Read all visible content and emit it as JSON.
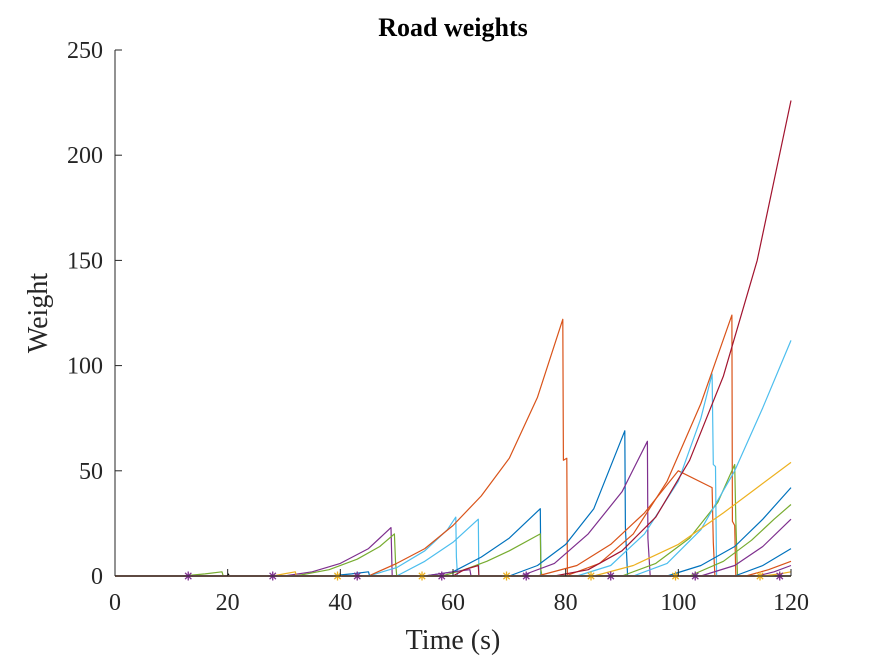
{
  "chart_data": {
    "type": "line",
    "title": "Road weights",
    "xlabel": "Time (s)",
    "ylabel": "Weight",
    "xlim": [
      0,
      120
    ],
    "ylim": [
      0,
      250
    ],
    "x_ticks": [
      0,
      20,
      40,
      60,
      80,
      100,
      120
    ],
    "y_ticks": [
      0,
      50,
      100,
      150,
      200,
      250
    ],
    "grid": false,
    "legend": "none",
    "series": [
      {
        "color": "#77ac30",
        "points": [
          [
            0,
            0
          ],
          [
            12,
            0
          ],
          [
            16,
            1
          ],
          [
            19,
            2
          ],
          [
            19.2,
            0
          ],
          [
            120,
            0
          ]
        ]
      },
      {
        "color": "#000000",
        "points": [
          [
            0,
            0
          ],
          [
            20,
            0
          ],
          [
            20.1,
            1
          ],
          [
            20.3,
            0
          ],
          [
            120,
            0
          ]
        ]
      },
      {
        "color": "#7e2f8e",
        "points": [
          [
            0,
            0
          ],
          [
            30,
            0
          ],
          [
            35,
            2
          ],
          [
            40,
            6
          ],
          [
            45,
            13
          ],
          [
            49,
            23
          ],
          [
            49.2,
            0
          ],
          [
            120,
            0
          ]
        ]
      },
      {
        "color": "#77ac30",
        "points": [
          [
            0,
            0
          ],
          [
            32,
            0
          ],
          [
            38,
            3
          ],
          [
            43,
            8
          ],
          [
            47,
            14
          ],
          [
            49.6,
            20
          ],
          [
            49.8,
            7
          ],
          [
            50,
            0
          ],
          [
            120,
            0
          ]
        ]
      },
      {
        "color": "#edb120",
        "points": [
          [
            0,
            0
          ],
          [
            28,
            0
          ],
          [
            30,
            1
          ],
          [
            32,
            2
          ],
          [
            32.2,
            0
          ],
          [
            120,
            0
          ]
        ]
      },
      {
        "color": "#0072bd",
        "points": [
          [
            0,
            0
          ],
          [
            38,
            0
          ],
          [
            42,
            1
          ],
          [
            45,
            2
          ],
          [
            45.2,
            0
          ],
          [
            120,
            0
          ]
        ]
      },
      {
        "color": "#4dbeee",
        "points": [
          [
            0,
            0
          ],
          [
            45,
            0
          ],
          [
            50,
            4
          ],
          [
            55,
            12
          ],
          [
            59,
            22
          ],
          [
            60.5,
            28
          ],
          [
            60.6,
            9
          ],
          [
            60.8,
            0
          ],
          [
            120,
            0
          ]
        ]
      },
      {
        "color": "#4dbeee",
        "points": [
          [
            0,
            0
          ],
          [
            50,
            0
          ],
          [
            55,
            7
          ],
          [
            60,
            16
          ],
          [
            64.5,
            27
          ],
          [
            64.6,
            0
          ],
          [
            120,
            0
          ]
        ]
      },
      {
        "color": "#d95319",
        "points": [
          [
            0,
            0
          ],
          [
            45,
            0
          ],
          [
            50,
            6
          ],
          [
            55,
            13
          ],
          [
            60,
            24
          ],
          [
            65,
            38
          ],
          [
            70,
            56
          ],
          [
            75,
            85
          ],
          [
            79.5,
            122
          ],
          [
            79.6,
            55
          ],
          [
            80.2,
            56
          ],
          [
            80.3,
            0
          ],
          [
            120,
            0
          ]
        ]
      },
      {
        "color": "#0072bd",
        "points": [
          [
            0,
            0
          ],
          [
            55,
            0
          ],
          [
            60,
            2
          ],
          [
            65,
            9
          ],
          [
            70,
            18
          ],
          [
            75.5,
            32
          ],
          [
            75.6,
            0
          ],
          [
            120,
            0
          ]
        ]
      },
      {
        "color": "#77ac30",
        "points": [
          [
            0,
            0
          ],
          [
            58,
            0
          ],
          [
            62,
            3
          ],
          [
            66,
            7
          ],
          [
            70,
            12
          ],
          [
            75.5,
            20
          ],
          [
            75.6,
            3
          ],
          [
            75.8,
            0
          ],
          [
            120,
            0
          ]
        ]
      },
      {
        "color": "#7e2f8e",
        "points": [
          [
            0,
            0
          ],
          [
            55,
            0
          ],
          [
            60,
            2
          ],
          [
            63,
            3
          ],
          [
            63.2,
            0
          ],
          [
            120,
            0
          ]
        ]
      },
      {
        "color": "#a2142f",
        "points": [
          [
            0,
            0
          ],
          [
            60,
            0
          ],
          [
            62,
            3
          ],
          [
            64.5,
            5
          ],
          [
            64.6,
            0
          ],
          [
            120,
            0
          ]
        ]
      },
      {
        "color": "#0072bd",
        "points": [
          [
            0,
            0
          ],
          [
            70,
            0
          ],
          [
            75,
            5
          ],
          [
            80,
            15
          ],
          [
            85,
            32
          ],
          [
            90.5,
            69
          ],
          [
            90.6,
            23
          ],
          [
            91,
            0
          ],
          [
            120,
            0
          ]
        ]
      },
      {
        "color": "#7e2f8e",
        "points": [
          [
            0,
            0
          ],
          [
            72,
            0
          ],
          [
            78,
            6
          ],
          [
            84,
            20
          ],
          [
            90,
            40
          ],
          [
            94.5,
            64
          ],
          [
            94.6,
            18
          ],
          [
            95,
            0
          ],
          [
            120,
            0
          ]
        ]
      },
      {
        "color": "#d95319",
        "points": [
          [
            0,
            0
          ],
          [
            75,
            0
          ],
          [
            82,
            5
          ],
          [
            88,
            15
          ],
          [
            94,
            30
          ],
          [
            100,
            50
          ],
          [
            106,
            42
          ],
          [
            106.2,
            16
          ],
          [
            106.5,
            0
          ],
          [
            120,
            0
          ]
        ]
      },
      {
        "color": "#4dbeee",
        "points": [
          [
            0,
            0
          ],
          [
            82,
            0
          ],
          [
            88,
            5
          ],
          [
            94,
            20
          ],
          [
            100,
            45
          ],
          [
            104,
            75
          ],
          [
            106,
            96
          ],
          [
            106.2,
            53
          ],
          [
            106.6,
            52
          ],
          [
            106.8,
            0
          ],
          [
            120,
            0
          ]
        ]
      },
      {
        "color": "#d95319",
        "points": [
          [
            0,
            0
          ],
          [
            80,
            0
          ],
          [
            86,
            6
          ],
          [
            92,
            20
          ],
          [
            98,
            45
          ],
          [
            104,
            82
          ],
          [
            109.5,
            124
          ],
          [
            109.6,
            26
          ],
          [
            110,
            24
          ],
          [
            110.2,
            0
          ],
          [
            120,
            0
          ]
        ]
      },
      {
        "color": "#77ac30",
        "points": [
          [
            0,
            0
          ],
          [
            90,
            0
          ],
          [
            96,
            6
          ],
          [
            102,
            18
          ],
          [
            107,
            35
          ],
          [
            110,
            53
          ],
          [
            110.2,
            27
          ],
          [
            110.5,
            0
          ],
          [
            120,
            0
          ]
        ]
      },
      {
        "color": "#a2142f",
        "points": [
          [
            0,
            0
          ],
          [
            78,
            0
          ],
          [
            84,
            3
          ],
          [
            90,
            12
          ],
          [
            96,
            28
          ],
          [
            102,
            55
          ],
          [
            108,
            95
          ],
          [
            114,
            150
          ],
          [
            120,
            226
          ]
        ]
      },
      {
        "color": "#4dbeee",
        "points": [
          [
            0,
            0
          ],
          [
            92,
            0
          ],
          [
            98,
            6
          ],
          [
            104,
            22
          ],
          [
            110,
            50
          ],
          [
            115,
            80
          ],
          [
            120,
            112
          ]
        ]
      },
      {
        "color": "#edb120",
        "points": [
          [
            0,
            0
          ],
          [
            85,
            0
          ],
          [
            92,
            5
          ],
          [
            100,
            15
          ],
          [
            108,
            30
          ],
          [
            114,
            42
          ],
          [
            120,
            54
          ]
        ]
      },
      {
        "color": "#0072bd",
        "points": [
          [
            0,
            0
          ],
          [
            98,
            0
          ],
          [
            104,
            5
          ],
          [
            110,
            14
          ],
          [
            115,
            27
          ],
          [
            120,
            42
          ]
        ]
      },
      {
        "color": "#77ac30",
        "points": [
          [
            0,
            0
          ],
          [
            102,
            0
          ],
          [
            108,
            7
          ],
          [
            113,
            17
          ],
          [
            117,
            27
          ],
          [
            120,
            34
          ]
        ]
      },
      {
        "color": "#7e2f8e",
        "points": [
          [
            0,
            0
          ],
          [
            104,
            0
          ],
          [
            110,
            5
          ],
          [
            115,
            14
          ],
          [
            120,
            27
          ]
        ]
      },
      {
        "color": "#0072bd",
        "points": [
          [
            0,
            0
          ],
          [
            110,
            0
          ],
          [
            115,
            5
          ],
          [
            120,
            13
          ]
        ]
      },
      {
        "color": "#d95319",
        "points": [
          [
            0,
            0
          ],
          [
            112,
            0
          ],
          [
            116,
            3
          ],
          [
            120,
            7
          ]
        ]
      },
      {
        "color": "#7e2f8e",
        "points": [
          [
            0,
            0
          ],
          [
            114,
            0
          ],
          [
            117,
            2
          ],
          [
            120,
            5
          ]
        ]
      },
      {
        "color": "#edb120",
        "points": [
          [
            0,
            0
          ],
          [
            115,
            0
          ],
          [
            118,
            1
          ],
          [
            120,
            2
          ]
        ]
      }
    ],
    "markers": [
      {
        "x": 13,
        "y": 0,
        "color": "#7e2f8e"
      },
      {
        "x": 28,
        "y": 0,
        "color": "#7e2f8e"
      },
      {
        "x": 39.5,
        "y": 0,
        "color": "#edb120"
      },
      {
        "x": 43,
        "y": 0,
        "color": "#7e2f8e"
      },
      {
        "x": 54.5,
        "y": 0,
        "color": "#edb120"
      },
      {
        "x": 58,
        "y": 0,
        "color": "#7e2f8e"
      },
      {
        "x": 69.5,
        "y": 0,
        "color": "#edb120"
      },
      {
        "x": 73,
        "y": 0,
        "color": "#7e2f8e"
      },
      {
        "x": 84.5,
        "y": 0,
        "color": "#edb120"
      },
      {
        "x": 88,
        "y": 0,
        "color": "#7e2f8e"
      },
      {
        "x": 99.5,
        "y": 0,
        "color": "#edb120"
      },
      {
        "x": 103,
        "y": 0,
        "color": "#7e2f8e"
      },
      {
        "x": 114.5,
        "y": 0,
        "color": "#edb120"
      },
      {
        "x": 118,
        "y": 0,
        "color": "#7e2f8e"
      }
    ]
  }
}
